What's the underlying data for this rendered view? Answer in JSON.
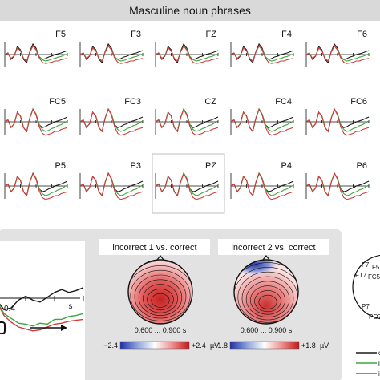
{
  "header": {
    "title": "Masculine noun phrases"
  },
  "colors": {
    "correct": "#1a1a1a",
    "incorrect1": "#3aa83a",
    "incorrect2": "#d23a3a",
    "banner": "#d9d9d9",
    "panel": "#e2e2e2"
  },
  "chart_data": [
    {
      "type": "line",
      "panel": "electrode-grid",
      "electrodes": [
        [
          "F5",
          "F3",
          "FZ",
          "F4",
          "F6"
        ],
        [
          "FC5",
          "FC3",
          "CZ",
          "FC4",
          "FC6"
        ],
        [
          "P5",
          "P3",
          "PZ",
          "P4",
          "P6"
        ]
      ],
      "highlighted": "PZ",
      "series": [
        {
          "key": "correct"
        },
        {
          "key": "incorrect1"
        },
        {
          "key": "incorrect2"
        }
      ],
      "waveform_template": {
        "x": [
          0,
          0.05,
          0.1,
          0.15,
          0.2,
          0.25,
          0.3,
          0.35,
          0.4,
          0.45,
          0.5,
          0.55,
          0.6,
          0.65,
          0.7,
          0.75,
          0.8,
          0.85,
          0.9,
          0.95,
          1.0
        ],
        "correct": [
          0,
          0.2,
          -0.6,
          -0.2,
          1.0,
          0.6,
          -0.6,
          -1.0,
          0.4,
          1.3,
          0.8,
          -0.3,
          -0.6,
          -0.5,
          -0.3,
          -0.2,
          0,
          0.1,
          0.2,
          0.35,
          0.5
        ],
        "incorrect1": [
          0,
          0.2,
          -0.6,
          -0.2,
          1.0,
          0.6,
          -0.6,
          -1.0,
          0.4,
          1.35,
          0.8,
          -0.3,
          -0.8,
          -1.0,
          -0.9,
          -0.7,
          -0.6,
          -0.4,
          -0.3,
          -0.1,
          0.1
        ],
        "incorrect2": [
          0,
          0.2,
          -0.6,
          -0.2,
          1.0,
          0.6,
          -0.6,
          -1.0,
          0.4,
          1.3,
          0.7,
          -0.5,
          -1.2,
          -1.4,
          -1.3,
          -1.2,
          -1.0,
          -1.0,
          -0.8,
          -0.7,
          -0.6
        ]
      }
    },
    {
      "type": "line",
      "panel": "enlarged-waveform",
      "x_tick_label": "0.4",
      "x_unit": "s",
      "x": [
        0,
        0.05,
        0.1,
        0.15,
        0.2,
        0.25,
        0.3,
        0.35,
        0.4,
        0.45,
        0.5,
        0.55,
        0.6,
        0.65,
        0.7,
        0.75,
        0.8
      ],
      "series": [
        {
          "key": "correct",
          "values": [
            0.3,
            1.0,
            2.6,
            2.2,
            -0.2,
            -1.2,
            -1.0,
            -0.2,
            0.2,
            -0.2,
            -0.4,
            0.1,
            0.6,
            0.9,
            0.6,
            0.8,
            1.1
          ]
        },
        {
          "key": "incorrect1",
          "values": [
            0.3,
            1.0,
            2.8,
            2.3,
            -0.3,
            -1.6,
            -2.1,
            -2.6,
            -2.7,
            -2.9,
            -2.6,
            -2.7,
            -2.2,
            -2.2,
            -1.9,
            -1.8,
            -1.6
          ]
        },
        {
          "key": "incorrect2",
          "values": [
            0.3,
            1.0,
            2.9,
            2.3,
            -0.4,
            -1.8,
            -2.5,
            -3.0,
            -3.2,
            -3.4,
            -3.3,
            -3.0,
            -2.7,
            -2.6,
            -2.4,
            -2.3,
            -2.2
          ]
        }
      ]
    },
    {
      "type": "heatmap",
      "panel": "topomap-1",
      "title": "incorrect 1 vs. correct",
      "time_window": "0.600 ... 0.900 s",
      "colorbar": {
        "min_label": "−2.4",
        "max_label": "+2.4",
        "unit": "µV"
      }
    },
    {
      "type": "heatmap",
      "panel": "topomap-2",
      "title": "incorrect 2 vs. correct",
      "time_window": "0.600 ... 0.900 s",
      "colorbar": {
        "min_label": "−1.8",
        "max_label": "+1.8",
        "unit": "µV"
      }
    }
  ],
  "montage": {
    "labels": [
      "F7",
      "FT7",
      "F5",
      "FC5",
      "P7",
      "PO7"
    ]
  }
}
